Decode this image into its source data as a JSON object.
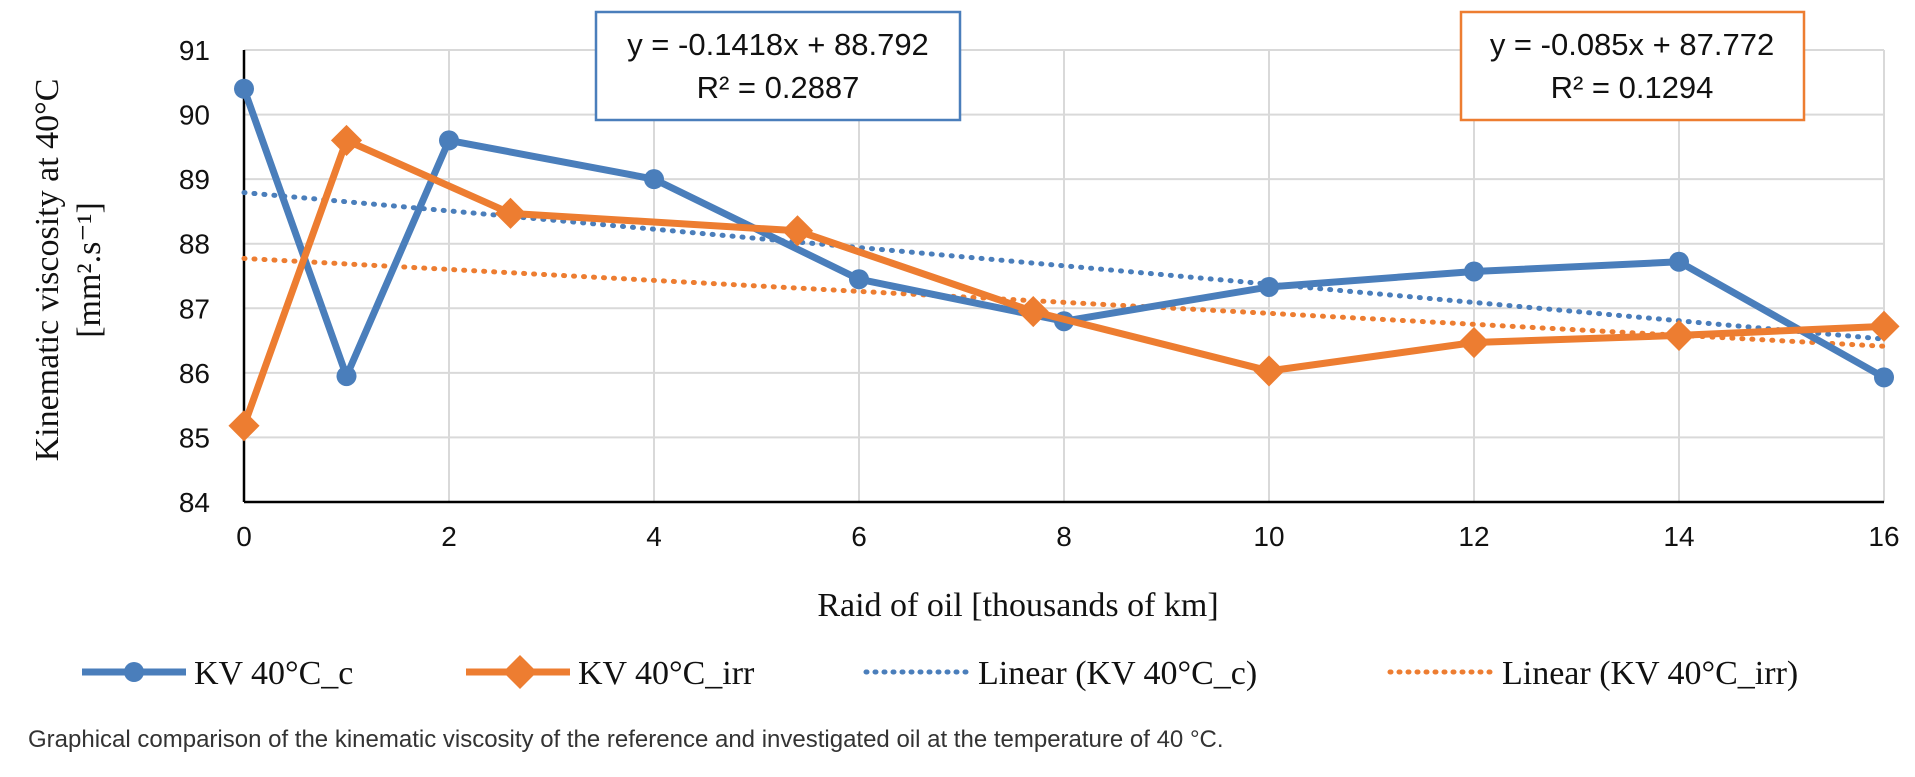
{
  "chart_data": {
    "type": "line",
    "xlabel": "Raid of oil [thousands of km]",
    "ylabel_line1": "Kinematic viscosity at 40°C",
    "ylabel_line2": "[mm².s⁻¹]",
    "xlim": [
      0,
      16
    ],
    "ylim": [
      84,
      91
    ],
    "xticks": [
      0,
      2,
      4,
      6,
      8,
      10,
      12,
      14,
      16
    ],
    "yticks": [
      84,
      85,
      86,
      87,
      88,
      89,
      90,
      91
    ],
    "grid": true,
    "legend_position": "bottom",
    "series": [
      {
        "name": "KV 40°C_c",
        "marker": "circle",
        "color": "#4a7ebb",
        "x": [
          0,
          1,
          2,
          4,
          6,
          8,
          10,
          12,
          14,
          16
        ],
        "y": [
          90.4,
          85.95,
          89.6,
          89.0,
          87.45,
          86.8,
          87.33,
          87.57,
          87.72,
          85.93
        ]
      },
      {
        "name": "KV 40°C_irr",
        "marker": "diamond",
        "color": "#ed7d31",
        "x": [
          0,
          1,
          2.6,
          5.4,
          7.7,
          10,
          12,
          14,
          16
        ],
        "y": [
          85.18,
          89.6,
          88.47,
          88.2,
          86.95,
          86.03,
          86.47,
          86.58,
          86.72
        ]
      }
    ],
    "trendlines": [
      {
        "name": "Linear (KV 40°C_c)",
        "color": "#4a7ebb",
        "slope": -0.1418,
        "intercept": 88.792,
        "equation": "y = -0.1418x + 88.792",
        "r2": "R² = 0.2887"
      },
      {
        "name": "Linear (KV 40°C_irr)",
        "color": "#ed7d31",
        "slope": -0.085,
        "intercept": 87.772,
        "equation": "y = -0.085x + 87.772",
        "r2": "R² = 0.1294"
      }
    ]
  },
  "caption": "Graphical comparison of the kinematic viscosity of the reference and investigated oil at the temperature of 40 °C.",
  "colors": {
    "grid": "#d9d9d9",
    "axis": "#000000"
  }
}
